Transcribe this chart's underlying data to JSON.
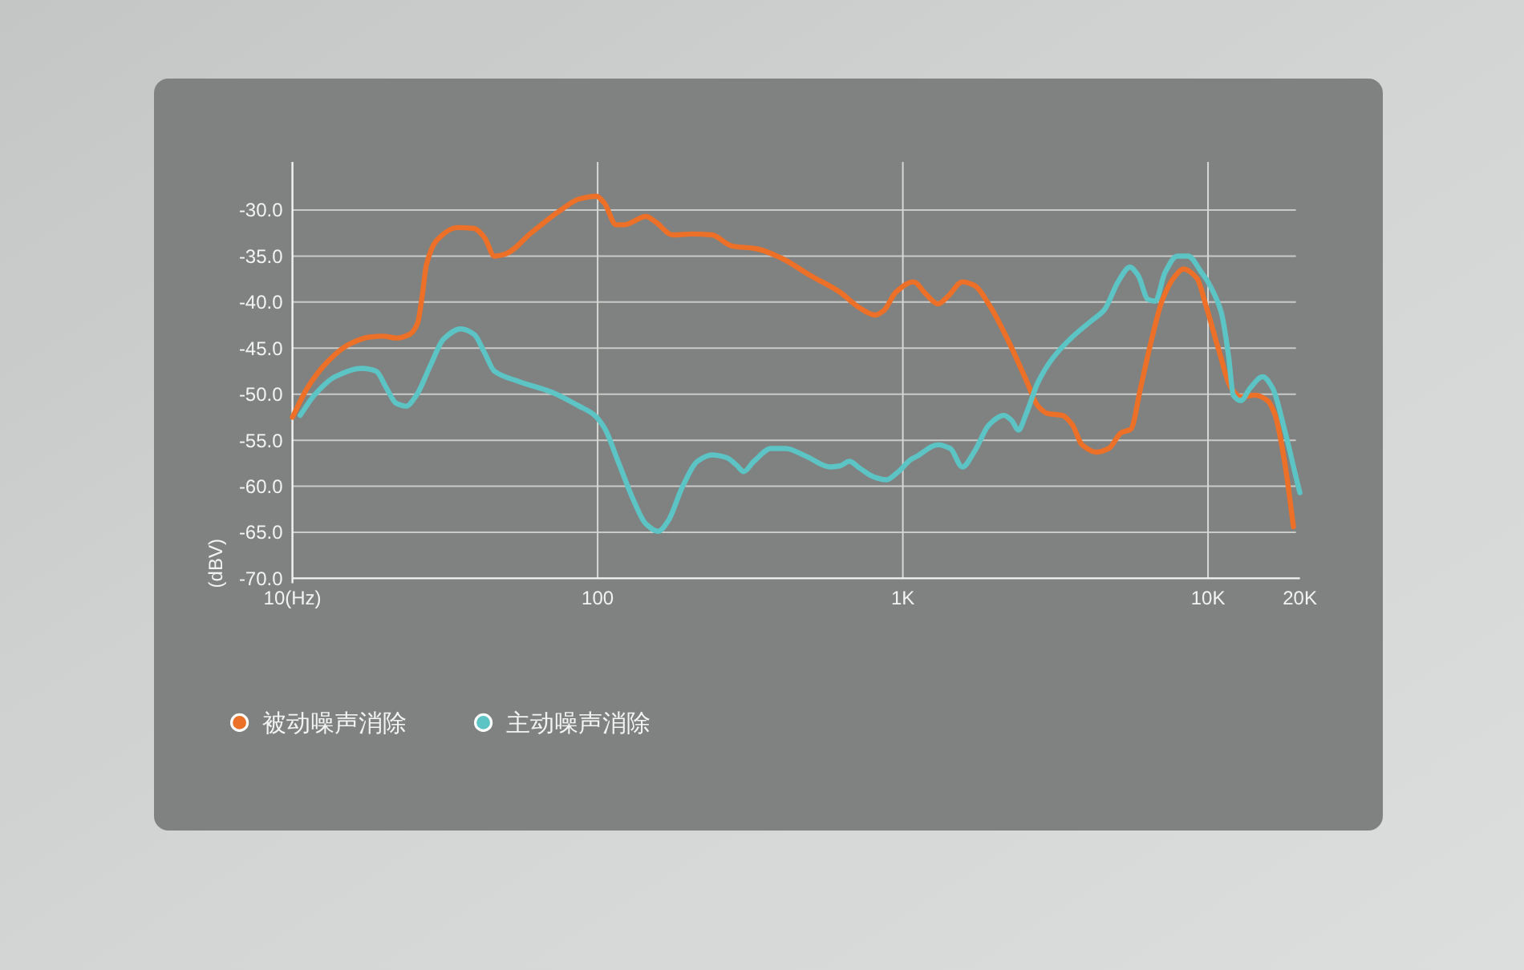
{
  "chart_data": {
    "type": "line",
    "ylabel": "(dBV)",
    "log": "x",
    "xlim": [
      10,
      20000
    ],
    "ylim": [
      -70,
      -25
    ],
    "xticks": [
      {
        "value": 10,
        "label": "10(Hz)"
      },
      100,
      {
        "value": 1000,
        "label": "1K"
      },
      {
        "value": 10000,
        "label": "10K"
      },
      {
        "value": 20000,
        "label": "20K"
      }
    ],
    "yticks": [
      {
        "value": -70,
        "label": "-70.0"
      },
      {
        "value": -65,
        "label": "-65.0"
      },
      {
        "value": -60,
        "label": "-60.0"
      },
      {
        "value": -55,
        "label": "-55.0"
      },
      {
        "value": -50,
        "label": "-50.0"
      },
      {
        "value": -45,
        "label": "-45.0"
      },
      {
        "value": -40,
        "label": "-40.0"
      },
      {
        "value": -35,
        "label": "-35.0"
      },
      {
        "value": -30,
        "label": "-30.0"
      }
    ],
    "grid": true,
    "legend": "bottom left",
    "line_style": "solid",
    "series": [
      {
        "name": "被动噪声消除",
        "color": "#ec7028",
        "x": [
          10,
          11.2,
          13.1,
          15.3,
          17.8,
          19.8,
          21.9,
          24.2,
          25.7,
          26.6,
          27.5,
          29.7,
          34.7,
          39.4,
          42.6,
          45.9,
          49.6,
          61,
          75,
          87,
          99,
          105,
          115,
          122,
          144,
          155,
          176,
          204,
          237,
          275,
          331,
          399,
          497,
          621,
          720,
          811,
          867,
          950,
          1084,
          1189,
          1304,
          1403,
          1568,
          1718,
          1919,
          2223,
          2531,
          2774,
          2985,
          3335,
          3590,
          3866,
          4318,
          4730,
          5188,
          5585,
          6013,
          6475,
          7100,
          7786,
          8300,
          9190,
          9890,
          10843,
          11885,
          12796,
          14295,
          15668,
          16567,
          17832,
          19055
        ],
        "values": [
          -52.5,
          -49.3,
          -46.4,
          -44.6,
          -43.8,
          -43.7,
          -43.9,
          -43.5,
          -42.3,
          -39.4,
          -35.9,
          -33.3,
          -31.9,
          -32.0,
          -33.0,
          -35.0,
          -34.8,
          -32.4,
          -30.1,
          -28.8,
          -28.5,
          -29.2,
          -31.6,
          -31.6,
          -30.7,
          -31.3,
          -32.7,
          -32.6,
          -32.7,
          -33.9,
          -34.2,
          -35.2,
          -37.1,
          -38.9,
          -40.6,
          -41.4,
          -40.9,
          -38.9,
          -37.8,
          -39.1,
          -40.2,
          -39.4,
          -37.8,
          -38.2,
          -40.3,
          -44.3,
          -48.4,
          -51.3,
          -52.1,
          -52.3,
          -53.3,
          -55.5,
          -56.3,
          -55.9,
          -54.2,
          -53.8,
          -49.3,
          -44.6,
          -39.7,
          -37.2,
          -36.4,
          -37.4,
          -40.6,
          -45.2,
          -49.3,
          -50.3,
          -50.1,
          -50.7,
          -52.2,
          -57.4,
          -64.4
        ]
      },
      {
        "name": "主动噪声消除",
        "color": "#5cc4c4",
        "x": [
          10.6,
          11.8,
          13.8,
          16.9,
          18.8,
          20.3,
          21.9,
          23.6,
          25.5,
          28.3,
          31.3,
          35.6,
          39.4,
          42.6,
          45.9,
          55,
          71,
          87,
          97,
          105,
          117,
          131,
          144,
          158,
          170,
          190,
          212,
          237,
          265,
          285,
          301,
          325,
          370,
          413,
          479,
          577,
          621,
          668,
          720,
          805,
          883,
          968,
          1062,
          1105,
          1304,
          1430,
          1568,
          1718,
          1919,
          2143,
          2265,
          2394,
          2531,
          2774,
          3097,
          3590,
          4159,
          4560,
          5093,
          5546,
          5902,
          6356,
          6717,
          7228,
          7925,
          8600,
          9530,
          10074,
          11048,
          11670,
          12107,
          12796,
          13772,
          15101,
          16255,
          17832,
          19551,
          20000
        ],
        "values": [
          -52.3,
          -50.1,
          -48.1,
          -47.2,
          -47.5,
          -49.3,
          -51.0,
          -51.3,
          -50.1,
          -46.9,
          -44.0,
          -42.9,
          -43.5,
          -45.5,
          -47.5,
          -48.6,
          -49.8,
          -51.3,
          -52.2,
          -53.6,
          -57.4,
          -61.5,
          -64.1,
          -64.9,
          -63.8,
          -60.0,
          -57.3,
          -56.6,
          -56.9,
          -57.7,
          -58.4,
          -57.3,
          -55.9,
          -55.9,
          -56.7,
          -57.9,
          -57.8,
          -57.3,
          -58.0,
          -59.0,
          -59.3,
          -58.4,
          -57.1,
          -56.8,
          -55.5,
          -55.9,
          -57.9,
          -56.2,
          -53.3,
          -52.3,
          -52.8,
          -53.9,
          -52.2,
          -48.7,
          -46.1,
          -43.8,
          -42.0,
          -40.9,
          -37.7,
          -36.2,
          -37.1,
          -39.7,
          -39.9,
          -36.8,
          -35.0,
          -35.0,
          -36.8,
          -38.0,
          -41.1,
          -45.8,
          -50.1,
          -50.7,
          -49.3,
          -48.1,
          -49.3,
          -53.9,
          -59.4,
          -60.7
        ]
      }
    ]
  }
}
